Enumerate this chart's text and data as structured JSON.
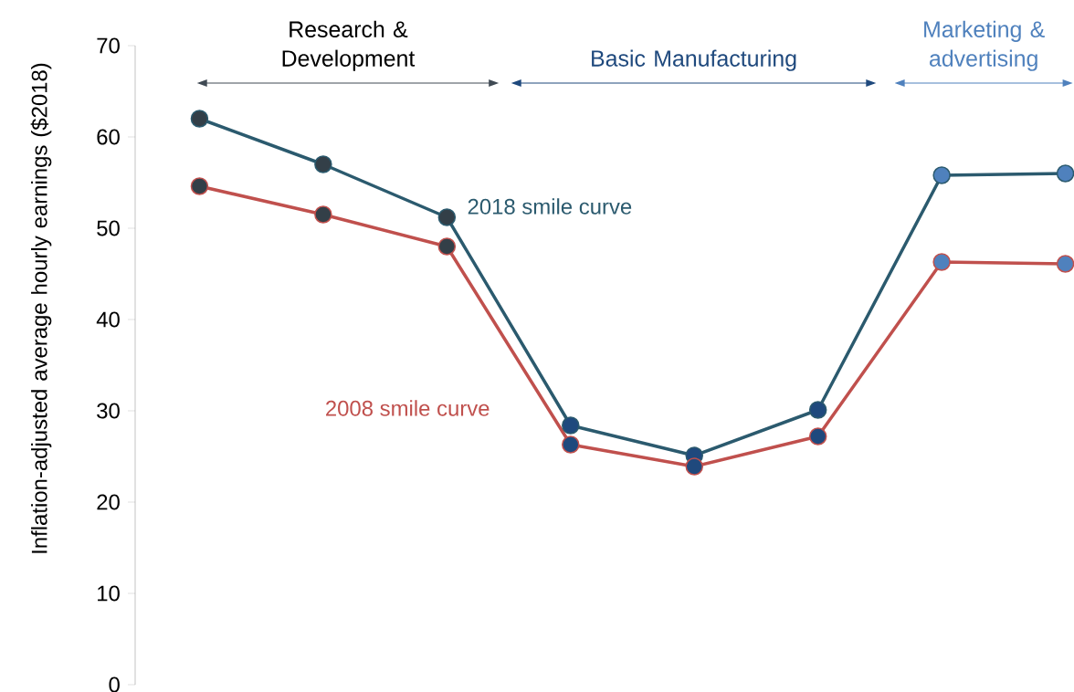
{
  "chart_data": {
    "type": "line",
    "ylabel": "Inflation-adjusted average hourly earnings ($2018)",
    "categories": [
      null,
      null,
      null,
      null,
      null,
      null,
      null,
      null
    ],
    "ylim": [
      0,
      70
    ],
    "yticks": [
      0,
      10,
      20,
      30,
      40,
      50,
      60,
      70
    ],
    "series": [
      {
        "name": "2018 smile curve",
        "color": "#2b5a6e",
        "values": [
          62,
          57,
          51.2,
          28.4,
          25.1,
          30.1,
          55.8,
          56
        ],
        "colors": [
          "#333f48",
          "#333f48",
          "#333f48",
          "#1f497d",
          "#1f497d",
          "#1f497d",
          "#4f81bd",
          "#4f81bd"
        ]
      },
      {
        "name": "2008 smile curve",
        "color": "#c0504d",
        "values": [
          54.6,
          51.5,
          48.0,
          26.3,
          23.9,
          27.2,
          46.3,
          46.1
        ],
        "colors": [
          "#333f48",
          "#333f48",
          "#333f48",
          "#1f497d",
          "#1f497d",
          "#1f497d",
          "#4f81bd",
          "#4f81bd"
        ]
      }
    ],
    "annotations": [
      "Research & Development",
      "Basic Manufacturing",
      "Marketing & advertising"
    ],
    "marker": "circle",
    "line_style": "solid",
    "grid": false
  }
}
